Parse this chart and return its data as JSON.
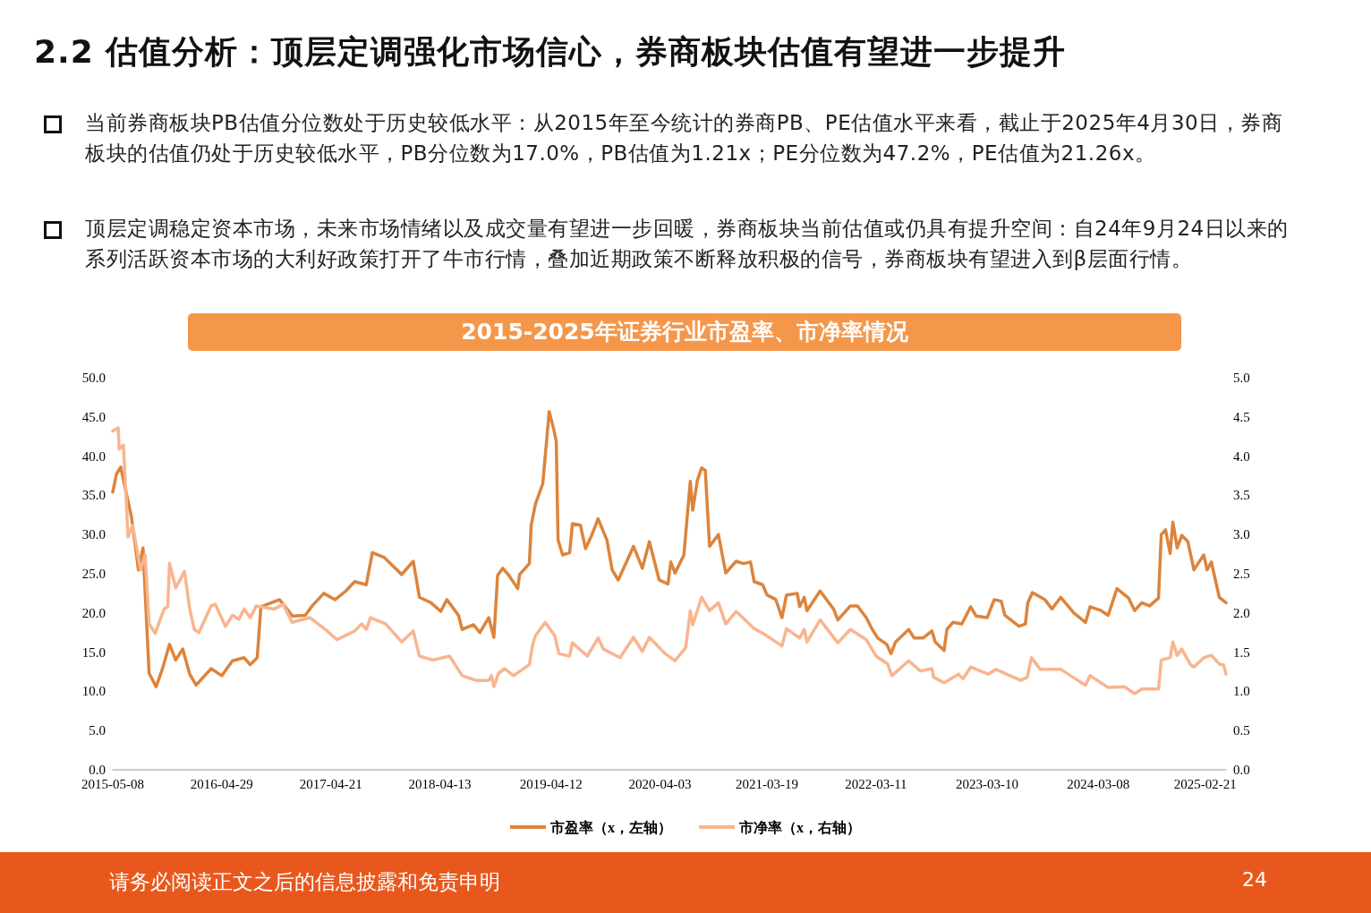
{
  "chart_data": {
    "type": "line",
    "title": "2015-2025年证券行业市盈率、市净率情况",
    "annotations": [
      "2.2 估值分析：顶层定调强化市场信心，券商板块估值有望进一步提升",
      "当前券商板块PB估值分位数处于历史较低水平：从2015年至今统计的券商PB、PE估值水平来看，截止于2025年4月30日，券商板块的估值仍处于历史较低水平，PB分位数为17.0%，PB估值为1.21x；PE分位数为47.2%，PE估值为21.26x。",
      "顶层定调稳定资本市场，未来市场情绪以及成交量有望进一步回暖，券商板块当前估值或仍具有提升空间：自24年9月24日以来的系列活跃资本市场的大利好政策打开了牛市行情，叠加近期政策不断释放积极的信号，券商板块有望进入到β层面行情。",
      "请务必阅读正文之后的信息披露和免责申明",
      "24"
    ],
    "xlim": [
      "2015-05-08",
      "2025-04-30"
    ],
    "xticks": [
      "2015-05-08",
      "2016-04-29",
      "2017-04-21",
      "2018-04-13",
      "2019-04-12",
      "2020-04-03",
      "2021-03-19",
      "2022-03-11",
      "2023-03-10",
      "2024-03-08",
      "2025-02-21"
    ],
    "ylim": [
      0,
      50
    ],
    "yticks": [
      {
        "value": 0,
        "label": "0.0"
      },
      {
        "value": 5,
        "label": "5.0"
      },
      {
        "value": 10,
        "label": "10.0"
      },
      {
        "value": 15,
        "label": "15.0"
      },
      {
        "value": 20,
        "label": "20.0"
      },
      {
        "value": 25,
        "label": "25.0"
      },
      {
        "value": 30,
        "label": "30.0"
      },
      {
        "value": 35,
        "label": "35.0"
      },
      {
        "value": 40,
        "label": "40.0"
      },
      {
        "value": 45,
        "label": "45.0"
      },
      {
        "value": 50,
        "label": "50.0"
      }
    ],
    "y2lim": [
      0,
      5
    ],
    "y2ticks": [
      {
        "value": 0,
        "label": "0.0"
      },
      0.5,
      {
        "value": 1,
        "label": "1.0"
      },
      1.5,
      {
        "value": 2,
        "label": "2.0"
      },
      2.5,
      {
        "value": 3,
        "label": "3.0"
      },
      3.5,
      {
        "value": 4,
        "label": "4.0"
      },
      4.5,
      {
        "value": 5,
        "label": "5.0"
      }
    ],
    "grid": false,
    "legend": "bottom",
    "marker": "none",
    "line_style": "solid",
    "series": [
      {
        "name": "市盈率（x，左轴）",
        "color": "#dc843c",
        "x": [
          "2015-05-08",
          "2015-05-20",
          "2015-06-03",
          "2015-07-08",
          "2015-07-31",
          "2015-08-15",
          "2015-09-04",
          "2015-09-27",
          "2015-10-17",
          "2015-11-10",
          "2015-11-30",
          "2015-12-23",
          "2016-01-15",
          "2016-02-05",
          "2016-03-25",
          "2016-04-29",
          "2016-06-03",
          "2016-07-11",
          "2016-07-31",
          "2016-08-23",
          "2016-09-04",
          "2016-11-04",
          "2016-12-17",
          "2017-01-27",
          "2017-02-19",
          "2017-03-29",
          "2017-05-05",
          "2017-06-09",
          "2017-07-08",
          "2017-08-15",
          "2017-09-04",
          "2017-10-12",
          "2017-12-09",
          "2018-01-16",
          "2018-02-05",
          "2018-03-15",
          "2018-04-16",
          "2018-05-06",
          "2018-06-13",
          "2018-06-25",
          "2018-08-01",
          "2018-08-22",
          "2018-09-20",
          "2018-10-07",
          "2018-10-19",
          "2018-11-05",
          "2018-11-25",
          "2018-12-24",
          "2018-12-30",
          "2019-01-31",
          "2019-02-06",
          "2019-02-20",
          "2019-03-16",
          "2019-04-06",
          "2019-04-21",
          "2019-04-29",
          "2019-05-05",
          "2019-05-20",
          "2019-06-12",
          "2019-06-21",
          "2019-07-17",
          "2019-08-03",
          "2019-08-23",
          "2019-09-13",
          "2019-10-12",
          "2019-10-29",
          "2019-11-18",
          "2019-12-23",
          "2020-01-07",
          "2020-02-05",
          "2020-02-28",
          "2020-03-31",
          "2020-04-29",
          "2020-05-08",
          "2020-05-22",
          "2020-06-20",
          "2020-07-11",
          "2020-07-19",
          "2020-08-03",
          "2020-08-17",
          "2020-08-29",
          "2020-09-12",
          "2020-10-11",
          "2020-11-04",
          "2020-12-08",
          "2021-01-01",
          "2021-01-24",
          "2021-02-05",
          "2021-03-05",
          "2021-03-19",
          "2021-04-17",
          "2021-05-07",
          "2021-05-22",
          "2021-06-26",
          "2021-07-04",
          "2021-07-19",
          "2021-07-28",
          "2021-09-09",
          "2021-10-23",
          "2021-11-06",
          "2021-12-17",
          "2022-01-09",
          "2022-02-07",
          "2022-02-27",
          "2022-03-17",
          "2022-04-15",
          "2022-04-29",
          "2022-05-14",
          "2022-06-26",
          "2022-07-14",
          "2022-08-12",
          "2022-09-10",
          "2022-09-21",
          "2022-10-20",
          "2022-10-29",
          "2022-11-18",
          "2022-12-17",
          "2023-01-15",
          "2023-02-02",
          "2023-03-10",
          "2023-04-02",
          "2023-04-25",
          "2023-05-07",
          "2023-06-22",
          "2023-07-13",
          "2023-07-21",
          "2023-08-05",
          "2023-09-15",
          "2023-10-08",
          "2023-11-06",
          "2023-12-19",
          "2024-01-26",
          "2024-02-10",
          "2024-03-17",
          "2024-04-09",
          "2024-05-08",
          "2024-06-15",
          "2024-07-05",
          "2024-07-28",
          "2024-08-23",
          "2024-09-21",
          "2024-09-30",
          "2024-10-14",
          "2024-10-29",
          "2024-11-07",
          "2024-11-21",
          "2024-12-06",
          "2024-12-26",
          "2025-01-15",
          "2025-02-16",
          "2025-02-27",
          "2025-03-13",
          "2025-04-08",
          "2025-04-30"
        ],
        "values": [
          35.4,
          37.7,
          38.6,
          32.3,
          25.5,
          28.3,
          12.3,
          10.6,
          12.8,
          16.0,
          14.0,
          15.4,
          12.2,
          10.8,
          12.9,
          12.0,
          13.9,
          14.3,
          13.4,
          14.3,
          20.8,
          21.7,
          19.6,
          19.7,
          20.9,
          22.5,
          21.7,
          22.8,
          24.0,
          23.6,
          27.7,
          27.1,
          24.9,
          26.6,
          22.0,
          21.3,
          20.2,
          21.7,
          19.7,
          17.9,
          18.5,
          17.5,
          19.4,
          16.9,
          24.8,
          25.7,
          24.8,
          23.1,
          24.9,
          26.3,
          31.2,
          33.9,
          36.5,
          45.7,
          43.4,
          41.9,
          29.3,
          27.4,
          27.7,
          31.4,
          31.2,
          28.2,
          29.9,
          32.0,
          29.3,
          25.5,
          24.2,
          27.2,
          28.5,
          25.7,
          29.1,
          24.2,
          23.7,
          26.5,
          25.1,
          27.4,
          36.8,
          33.1,
          36.9,
          38.5,
          38.2,
          28.5,
          30.0,
          25.1,
          26.6,
          26.3,
          26.5,
          24.0,
          23.6,
          22.3,
          21.7,
          19.4,
          22.3,
          22.5,
          20.8,
          22.0,
          20.3,
          22.8,
          20.5,
          19.1,
          20.9,
          20.9,
          19.4,
          17.9,
          16.8,
          16.0,
          14.8,
          16.3,
          17.9,
          16.8,
          16.8,
          17.7,
          16.3,
          15.2,
          17.9,
          18.8,
          18.6,
          20.8,
          19.6,
          19.4,
          21.7,
          21.5,
          19.7,
          18.3,
          18.6,
          21.3,
          22.6,
          21.7,
          20.5,
          22.0,
          20.0,
          18.8,
          20.8,
          20.3,
          19.7,
          23.1,
          21.9,
          20.3,
          21.3,
          20.9,
          21.9,
          30.0,
          30.6,
          27.6,
          31.6,
          28.3,
          29.9,
          29.1,
          25.5,
          27.4,
          25.5,
          26.5,
          22.0,
          21.3
        ]
      },
      {
        "name": "市净率（x，右轴）",
        "color": "#f8b58f",
        "axis": "y2",
        "x": [
          "2015-05-08",
          "2015-05-26",
          "2015-05-29",
          "2015-06-12",
          "2015-06-27",
          "2015-07-12",
          "2015-08-07",
          "2015-08-22",
          "2015-09-04",
          "2015-09-24",
          "2015-10-23",
          "2015-11-04",
          "2015-11-10",
          "2015-11-30",
          "2015-12-29",
          "2016-01-15",
          "2016-01-30",
          "2016-02-14",
          "2016-03-25",
          "2016-04-08",
          "2016-05-11",
          "2016-06-03",
          "2016-06-24",
          "2016-07-11",
          "2016-07-31",
          "2016-08-20",
          "2016-10-18",
          "2016-11-16",
          "2016-12-15",
          "2017-02-12",
          "2017-04-09",
          "2017-05-11",
          "2017-07-08",
          "2017-07-31",
          "2017-08-15",
          "2017-08-29",
          "2017-10-18",
          "2017-12-09",
          "2018-01-16",
          "2018-02-05",
          "2018-03-21",
          "2018-05-15",
          "2018-06-25",
          "2018-08-10",
          "2018-09-20",
          "2018-09-29",
          "2018-10-07",
          "2018-10-22",
          "2018-11-11",
          "2018-12-10",
          "2019-01-31",
          "2019-02-11",
          "2019-02-20",
          "2019-03-24",
          "2019-04-24",
          "2019-05-08",
          "2019-06-12",
          "2019-06-21",
          "2019-08-09",
          "2019-09-13",
          "2019-09-30",
          "2019-11-24",
          "2020-01-07",
          "2020-02-05",
          "2020-02-28",
          "2020-04-20",
          "2020-05-22",
          "2020-06-26",
          "2020-07-11",
          "2020-07-19",
          "2020-08-17",
          "2020-09-12",
          "2020-10-11",
          "2020-11-04",
          "2020-12-08",
          "2021-02-05",
          "2021-03-10",
          "2021-05-07",
          "2021-05-22",
          "2021-07-04",
          "2021-07-19",
          "2021-07-28",
          "2021-09-09",
          "2021-11-06",
          "2021-12-17",
          "2022-02-07",
          "2022-03-11",
          "2022-04-18",
          "2022-05-02",
          "2022-06-26",
          "2022-08-03",
          "2022-09-10",
          "2022-09-16",
          "2022-10-20",
          "2022-12-06",
          "2022-12-21",
          "2023-01-15",
          "2023-03-13",
          "2023-04-08",
          "2023-06-28",
          "2023-07-19",
          "2023-08-02",
          "2023-08-31",
          "2023-11-06",
          "2024-01-09",
          "2024-01-26",
          "2024-02-10",
          "2024-04-09",
          "2024-06-01",
          "2024-07-05",
          "2024-07-28",
          "2024-09-21",
          "2024-09-30",
          "2024-10-29",
          "2024-11-07",
          "2024-11-21",
          "2024-12-06",
          "2025-01-04",
          "2025-01-15",
          "2025-02-16",
          "2025-03-13",
          "2025-04-11",
          "2025-04-22",
          "2025-04-30"
        ],
        "values": [
          4.32,
          4.36,
          4.09,
          4.14,
          2.97,
          3.12,
          2.55,
          2.74,
          1.86,
          1.74,
          2.05,
          2.08,
          2.63,
          2.32,
          2.53,
          2.05,
          1.79,
          1.75,
          2.09,
          2.11,
          1.83,
          1.97,
          1.92,
          2.05,
          1.94,
          2.09,
          2.05,
          2.11,
          1.88,
          1.94,
          1.77,
          1.66,
          1.77,
          1.86,
          1.79,
          1.94,
          1.86,
          1.63,
          1.77,
          1.45,
          1.4,
          1.45,
          1.2,
          1.14,
          1.14,
          1.2,
          1.06,
          1.23,
          1.29,
          1.2,
          1.34,
          1.6,
          1.71,
          1.88,
          1.71,
          1.48,
          1.45,
          1.62,
          1.45,
          1.68,
          1.54,
          1.43,
          1.69,
          1.51,
          1.69,
          1.48,
          1.39,
          1.56,
          2.03,
          1.85,
          2.2,
          2.03,
          2.13,
          1.86,
          2.02,
          1.8,
          1.73,
          1.58,
          1.8,
          1.68,
          1.79,
          1.63,
          1.91,
          1.62,
          1.79,
          1.66,
          1.45,
          1.35,
          1.2,
          1.39,
          1.26,
          1.29,
          1.18,
          1.11,
          1.22,
          1.16,
          1.31,
          1.22,
          1.28,
          1.14,
          1.18,
          1.43,
          1.28,
          1.28,
          1.12,
          1.08,
          1.2,
          1.05,
          1.06,
          0.97,
          1.03,
          1.03,
          1.4,
          1.43,
          1.63,
          1.46,
          1.54,
          1.34,
          1.31,
          1.43,
          1.46,
          1.34,
          1.34,
          1.22
        ]
      }
    ]
  }
}
